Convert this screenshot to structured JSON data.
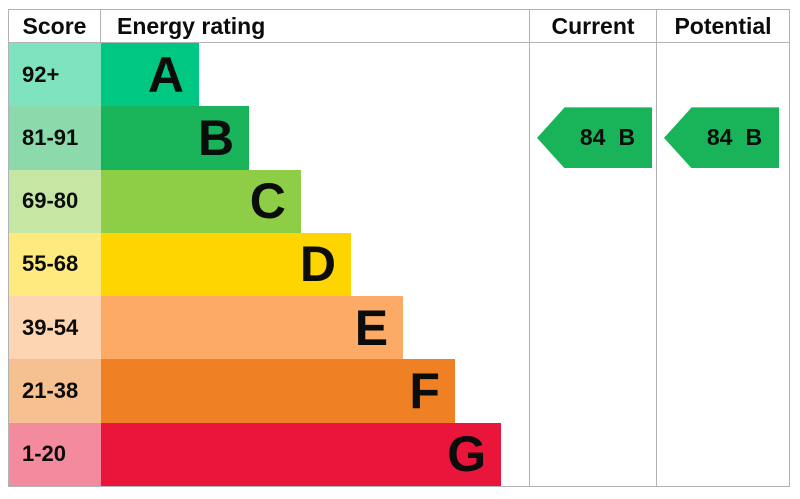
{
  "header": {
    "score": "Score",
    "rating": "Energy rating",
    "current": "Current",
    "potential": "Potential"
  },
  "colors": {
    "border": "#b1b4b6",
    "text": "#0b0c0c",
    "arrow_green": "#19b459"
  },
  "bands": [
    {
      "letter": "A",
      "score": "92+",
      "color": "#00c781",
      "tint": "#80e3c0",
      "bar_width": "22.9%"
    },
    {
      "letter": "B",
      "score": "81-91",
      "color": "#19b459",
      "tint": "#8cdaac",
      "bar_width": "34.6%"
    },
    {
      "letter": "C",
      "score": "69-80",
      "color": "#8dce46",
      "tint": "#c6e7a3",
      "bar_width": "46.7%"
    },
    {
      "letter": "D",
      "score": "55-68",
      "color": "#ffd500",
      "tint": "#ffea80",
      "bar_width": "58.4%"
    },
    {
      "letter": "E",
      "score": "39-54",
      "color": "#fcaa65",
      "tint": "#fed5b2",
      "bar_width": "70.6%"
    },
    {
      "letter": "F",
      "score": "21-38",
      "color": "#ef8023",
      "tint": "#f7c091",
      "bar_width": "82.7%"
    },
    {
      "letter": "G",
      "score": "1-20",
      "color": "#e9153b",
      "tint": "#f48a9d",
      "bar_width": "93.5%"
    }
  ],
  "current": {
    "value": "84",
    "letter": "B",
    "band": "B",
    "color": "#19b459"
  },
  "potential": {
    "value": "84",
    "letter": "B",
    "band": "B",
    "color": "#19b459"
  },
  "chart_data": {
    "type": "bar",
    "orientation": "horizontal",
    "title": "Energy rating",
    "columns": [
      "Score",
      "Energy rating",
      "Current",
      "Potential"
    ],
    "categories": [
      "A",
      "B",
      "C",
      "D",
      "E",
      "F",
      "G"
    ],
    "score_ranges": [
      "92+",
      "81-91",
      "69-80",
      "55-68",
      "39-54",
      "21-38",
      "1-20"
    ],
    "bar_lengths_relative": [
      0.23,
      0.35,
      0.47,
      0.58,
      0.71,
      0.83,
      0.94
    ],
    "band_colors": [
      "#00c781",
      "#19b459",
      "#8dce46",
      "#ffd500",
      "#fcaa65",
      "#ef8023",
      "#e9153b"
    ],
    "legend_position": "none",
    "grid": false,
    "current": {
      "score": 84,
      "band": "B"
    },
    "potential": {
      "score": 84,
      "band": "B"
    }
  }
}
